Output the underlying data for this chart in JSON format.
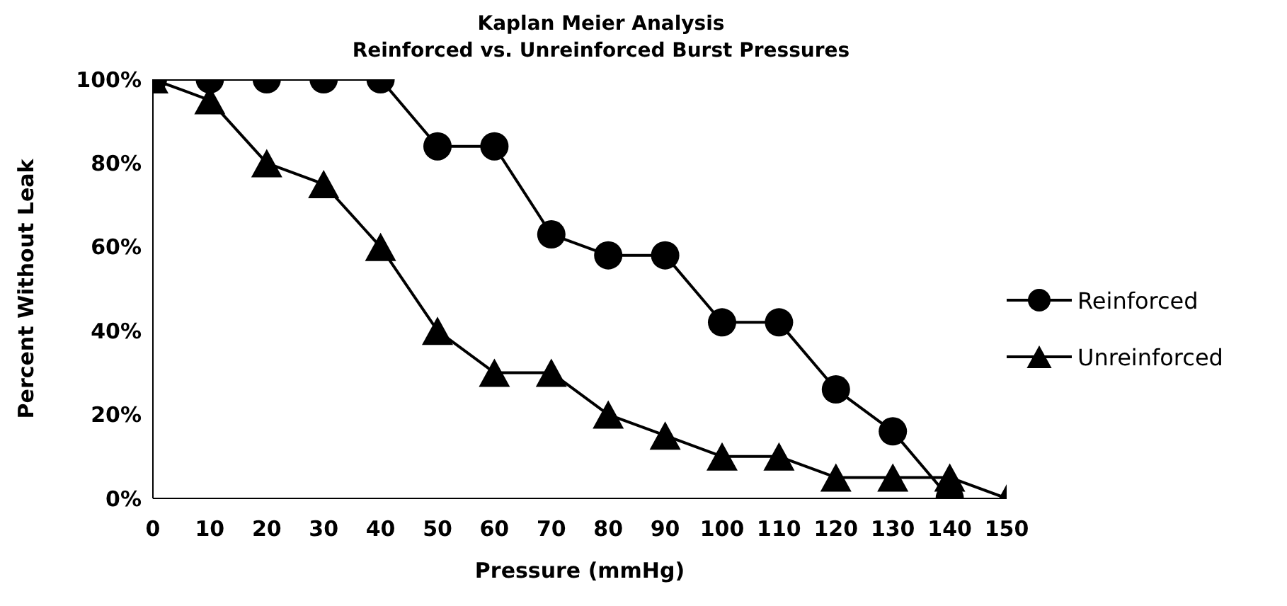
{
  "chart_data": {
    "type": "line",
    "title": "Kaplan Meier Analysis",
    "subtitle": "Reinforced vs. Unreinforced Burst Pressures",
    "xlabel": "Pressure (mmHg)",
    "ylabel": "Percent Without Leak",
    "x": [
      0,
      10,
      20,
      30,
      40,
      50,
      60,
      70,
      80,
      90,
      100,
      110,
      120,
      130,
      140,
      150
    ],
    "series": [
      {
        "name": "Reinforced",
        "color": "#000000",
        "marker": "circle",
        "values": [
          100,
          100,
          100,
          100,
          100,
          84,
          84,
          63,
          58,
          58,
          42,
          42,
          26,
          16,
          0,
          null
        ]
      },
      {
        "name": "Unreinforced",
        "color": "#000000",
        "marker": "triangle",
        "values": [
          100,
          95,
          80,
          75,
          60,
          40,
          30,
          30,
          20,
          15,
          10,
          10,
          5,
          5,
          5,
          0
        ]
      }
    ],
    "xlim": [
      0,
      150
    ],
    "xticks": [
      0,
      10,
      20,
      30,
      40,
      50,
      60,
      70,
      80,
      90,
      100,
      110,
      120,
      130,
      140,
      150
    ],
    "ylim": [
      0,
      100
    ],
    "yticks": [
      {
        "value": 0,
        "label": "0%"
      },
      {
        "value": 20,
        "label": "20%"
      },
      {
        "value": 40,
        "label": "40%"
      },
      {
        "value": 60,
        "label": "60%"
      },
      {
        "value": 80,
        "label": "80%"
      },
      {
        "value": 100,
        "label": "100%"
      }
    ],
    "grid": false,
    "legend": "right",
    "line_style": "solid"
  }
}
